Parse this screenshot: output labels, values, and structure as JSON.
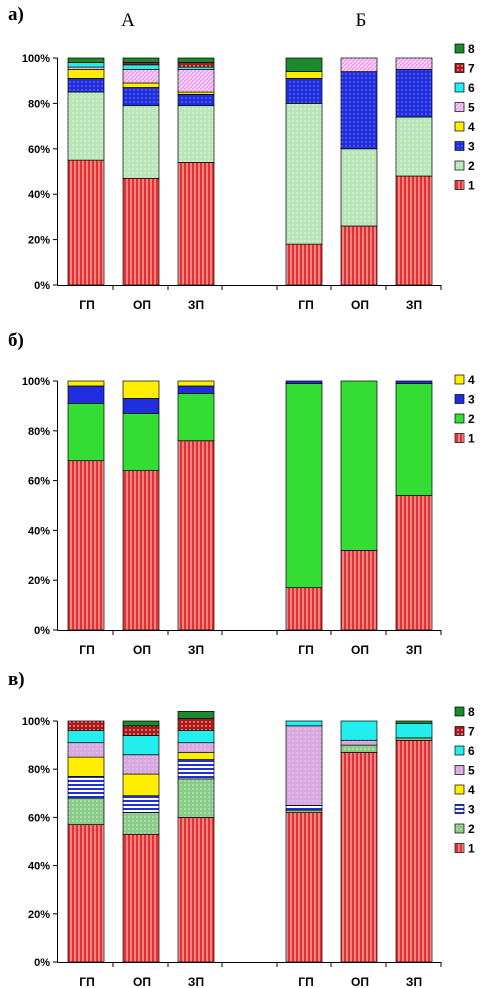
{
  "colors": {
    "1": "#e53030",
    "2": "#b8e6b8",
    "3": "#1f2fe0",
    "4": "#ffee00",
    "5": "#f0a0f0",
    "6": "#22eeee",
    "7": "#b01818",
    "8": "#1a8a2a",
    "b2": "#33dd33",
    "c2": "#88cc88",
    "c5": "#d8a8e0"
  },
  "chart_data": [
    {
      "type": "bar",
      "stacked": true,
      "panel_label": "а)",
      "group_titles": [
        "А",
        "Б"
      ],
      "categories": [
        "ГП",
        "ОП",
        "ЗП",
        "ГП",
        "ОП",
        "ЗП"
      ],
      "ylim": [
        0,
        100
      ],
      "yticks": [
        "0%",
        "20%",
        "40%",
        "60%",
        "80%",
        "100%"
      ],
      "legend": [
        "8",
        "7",
        "6",
        "5",
        "4",
        "3",
        "2",
        "1"
      ],
      "legend_placement": "right",
      "series": [
        {
          "name": "1",
          "values": [
            55,
            47,
            54,
            18,
            26,
            48
          ]
        },
        {
          "name": "2",
          "values": [
            30,
            32,
            25,
            62,
            34,
            26
          ]
        },
        {
          "name": "3",
          "values": [
            6,
            8,
            5,
            11,
            34,
            21
          ]
        },
        {
          "name": "4",
          "values": [
            4,
            2,
            1,
            3,
            0,
            0
          ]
        },
        {
          "name": "5",
          "values": [
            1,
            6,
            10,
            0,
            6,
            5
          ]
        },
        {
          "name": "6",
          "values": [
            2,
            2,
            1,
            0,
            0,
            0
          ]
        },
        {
          "name": "7",
          "values": [
            0,
            1,
            2,
            0,
            0,
            0
          ]
        },
        {
          "name": "8",
          "values": [
            2,
            2,
            2,
            6,
            0,
            0
          ]
        }
      ]
    },
    {
      "type": "bar",
      "stacked": true,
      "panel_label": "б)",
      "categories": [
        "ГП",
        "ОП",
        "ЗП",
        "ГП",
        "ОП",
        "ЗП"
      ],
      "ylim": [
        0,
        100
      ],
      "yticks": [
        "0%",
        "20%",
        "40%",
        "60%",
        "80%",
        "100%"
      ],
      "legend": [
        "4",
        "3",
        "2",
        "1"
      ],
      "legend_placement": "right",
      "series": [
        {
          "name": "1",
          "values": [
            68,
            64,
            76,
            17,
            32,
            54
          ]
        },
        {
          "name": "2",
          "values": [
            23,
            23,
            19,
            82,
            68,
            45
          ]
        },
        {
          "name": "3",
          "values": [
            7,
            6,
            3,
            1,
            0,
            1
          ]
        },
        {
          "name": "4",
          "values": [
            2,
            7,
            2,
            0,
            0,
            0
          ]
        }
      ]
    },
    {
      "type": "bar",
      "stacked": true,
      "panel_label": "в)",
      "categories": [
        "ГП",
        "ОП",
        "ЗП",
        "ГП",
        "ОП",
        "ЗП"
      ],
      "ylim": [
        0,
        100
      ],
      "yticks": [
        "0%",
        "20%",
        "40%",
        "60%",
        "80%",
        "100%"
      ],
      "legend": [
        "8",
        "7",
        "6",
        "5",
        "4",
        "3",
        "2",
        "1"
      ],
      "legend_placement": "right",
      "series": [
        {
          "name": "1",
          "values": [
            57,
            53,
            60,
            62,
            87,
            92
          ]
        },
        {
          "name": "2",
          "values": [
            11,
            9,
            16,
            1,
            3,
            1
          ]
        },
        {
          "name": "3",
          "values": [
            9,
            7,
            8,
            2,
            0,
            0
          ]
        },
        {
          "name": "4",
          "values": [
            8,
            9,
            3,
            0,
            0,
            0
          ]
        },
        {
          "name": "5",
          "values": [
            6,
            8,
            4,
            33,
            2,
            0
          ]
        },
        {
          "name": "6",
          "values": [
            5,
            8,
            5,
            2,
            8,
            6
          ]
        },
        {
          "name": "7",
          "values": [
            4,
            4,
            5,
            0,
            0,
            0
          ]
        },
        {
          "name": "8",
          "values": [
            0,
            2,
            3,
            0,
            0,
            1
          ]
        }
      ]
    }
  ]
}
